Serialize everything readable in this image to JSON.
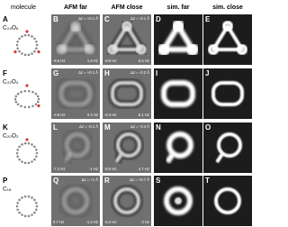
{
  "headers": [
    "molecule",
    "AFM far",
    "AFM close",
    "sim. far",
    "sim. close"
  ],
  "rows": [
    {
      "label": "A",
      "formula": "C₂₄O₆",
      "panels": [
        {
          "label": "B",
          "dz": "Δz = +0.1 Å",
          "freq": [
            "-6.6 Hz",
            "1.8 Hz"
          ]
        },
        {
          "label": "C",
          "dz": "Δz = -0.1 Å",
          "freq": [
            "-8.6 Hz",
            "6.5 Hz"
          ]
        },
        {
          "label": "D"
        },
        {
          "label": "E"
        }
      ]
    },
    {
      "label": "F",
      "formula": "C₂₂O₄",
      "panels": [
        {
          "label": "G",
          "dz": "Δz = +0.1 Å",
          "freq": [
            "-4.9 Hz",
            "0.4 Hz"
          ]
        },
        {
          "label": "H",
          "dz": "Δz = -0.2 Å",
          "freq": [
            "-6.3 Hz",
            "5.1 Hz"
          ]
        },
        {
          "label": "I"
        },
        {
          "label": "J"
        }
      ]
    },
    {
      "label": "K",
      "formula": "C₂₀O₂",
      "panels": [
        {
          "label": "L",
          "dz": "Δz = -0.1 Å",
          "freq": [
            "-7.2 Hz",
            "-1 Hz"
          ]
        },
        {
          "label": "M",
          "dz": "Δz = -0.4 Å",
          "freq": [
            "-8.0 Hz",
            "4.7 Hz"
          ]
        },
        {
          "label": "N"
        },
        {
          "label": "O"
        }
      ]
    },
    {
      "label": "P",
      "formula": "C₁₈",
      "panels": [
        {
          "label": "Q",
          "dz": "Δz = +1 Å",
          "freq": [
            "0.7 Hz",
            "-1.2 Hz"
          ]
        },
        {
          "label": "R",
          "dz": "Δz = +0.7 Å",
          "freq": [
            "-6.2 Hz",
            "3 Hz"
          ]
        },
        {
          "label": "S"
        },
        {
          "label": "T"
        }
      ]
    }
  ]
}
